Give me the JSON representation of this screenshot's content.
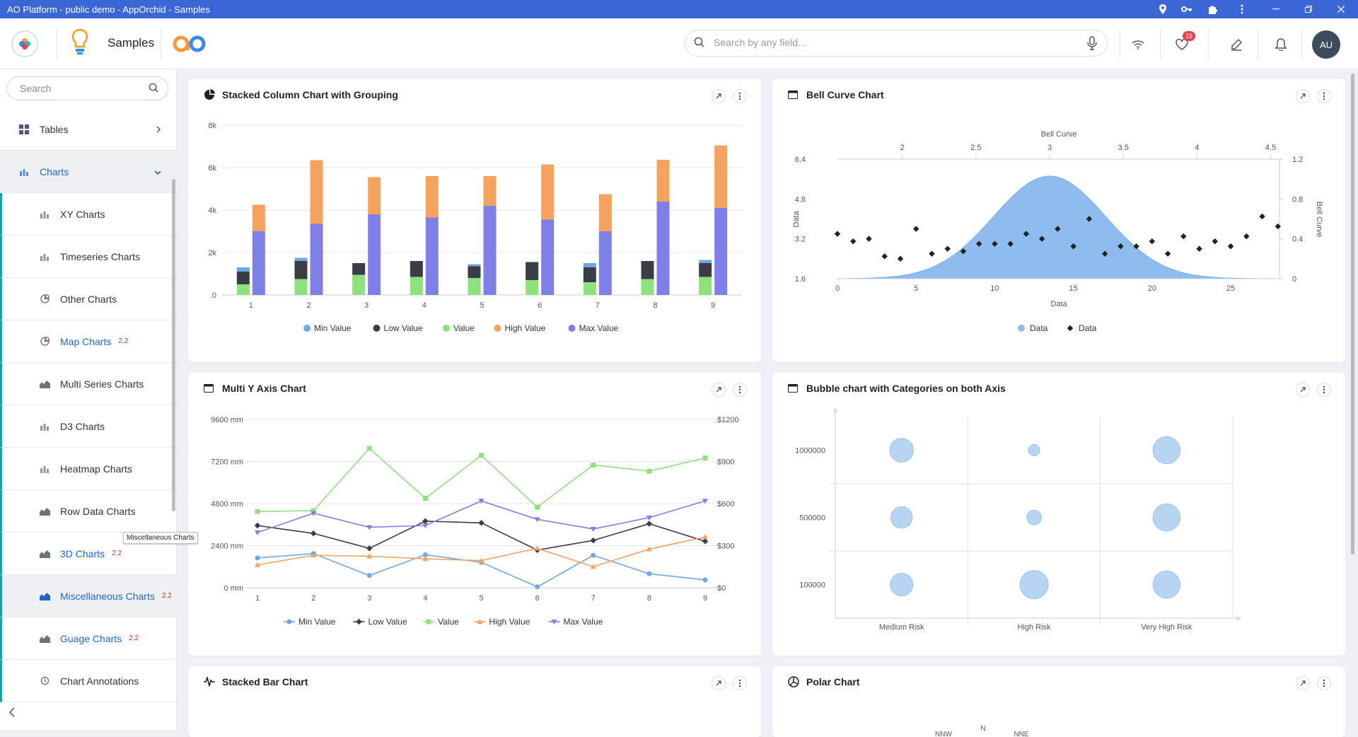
{
  "window": {
    "title": "AO Platform - public demo - AppOrchid - Samples"
  },
  "header": {
    "app_title": "Samples",
    "search_placeholder": "Search by any field...",
    "favorites_count": "15",
    "avatar_initials": "AU"
  },
  "sidebar": {
    "search_placeholder": "Search",
    "items": [
      {
        "label": "Tables",
        "level": "top",
        "icon": "grid-icon"
      },
      {
        "label": "Charts",
        "level": "top",
        "icon": "bar-chart-icon",
        "expanded": true
      },
      {
        "label": "XY Charts",
        "level": "sub",
        "icon": "bar-chart-icon"
      },
      {
        "label": "Timeseries Charts",
        "level": "sub",
        "icon": "bar-chart-icon"
      },
      {
        "label": "Other Charts",
        "level": "sub",
        "icon": "pie-chart-icon"
      },
      {
        "label": "Map Charts",
        "level": "sub",
        "icon": "pie-chart-icon",
        "version": "2.2"
      },
      {
        "label": "Multi Series Charts",
        "level": "sub",
        "icon": "area-chart-icon"
      },
      {
        "label": "D3 Charts",
        "level": "sub",
        "icon": "bar-chart-icon"
      },
      {
        "label": "Heatmap Charts",
        "level": "sub",
        "icon": "bar-chart-icon"
      },
      {
        "label": "Row Data Charts",
        "level": "sub",
        "icon": "area-chart-icon"
      },
      {
        "label": "3D Charts",
        "level": "sub",
        "icon": "area-chart-icon",
        "version": "2.2"
      },
      {
        "label": "Miscellaneous Charts",
        "level": "sub",
        "icon": "area-chart-icon",
        "version": "2.2",
        "active": true
      },
      {
        "label": "Guage Charts",
        "level": "sub",
        "icon": "area-chart-icon",
        "version": "2.2"
      },
      {
        "label": "Chart Annotations",
        "level": "sub",
        "icon": "clock-icon"
      }
    ],
    "tooltip": "Miscellaneous Charts"
  },
  "cards": {
    "stacked_column": {
      "title": "Stacked Column Chart with Grouping"
    },
    "bell_curve": {
      "title": "Bell Curve Chart"
    },
    "multi_y": {
      "title": "Multi Y Axis Chart"
    },
    "bubble": {
      "title": "Bubble chart with Categories on both Axis"
    },
    "stacked_bar": {
      "title": "Stacked Bar Chart"
    },
    "polar": {
      "title": "Polar Chart"
    }
  },
  "colors": {
    "min": "#6fa8e6",
    "low": "#3a3d44",
    "value": "#8ee27d",
    "high": "#f4a25e",
    "max": "#7f7fe8",
    "bell": "#8fbcee",
    "bubble": "#b7d4f2"
  },
  "chart_data": [
    {
      "type": "bar",
      "title": "Stacked Column Chart with Grouping",
      "categories": [
        "1",
        "2",
        "3",
        "4",
        "5",
        "6",
        "7",
        "8",
        "9"
      ],
      "ylim": [
        0,
        8000
      ],
      "yticks": [
        "0",
        "2k",
        "4k",
        "6k",
        "8k"
      ],
      "grouping": "stack1: Min Value, Low Value, Value; stack2: High Value, Max Value",
      "series": [
        {
          "name": "Min Value",
          "values": [
            200,
            150,
            0,
            0,
            100,
            0,
            200,
            0,
            150
          ]
        },
        {
          "name": "Low Value",
          "values": [
            600,
            850,
            550,
            750,
            550,
            850,
            700,
            850,
            650
          ]
        },
        {
          "name": "Value",
          "values": [
            500,
            750,
            950,
            850,
            800,
            700,
            600,
            750,
            850
          ]
        },
        {
          "name": "High Value",
          "values": [
            1250,
            3000,
            1750,
            1950,
            1400,
            2600,
            1750,
            1970,
            2950
          ]
        },
        {
          "name": "Max Value",
          "values": [
            3000,
            3350,
            3800,
            3650,
            4200,
            3550,
            3000,
            4400,
            4100
          ]
        }
      ],
      "legend": "bottom"
    },
    {
      "type": "area",
      "title": "Bell Curve Chart",
      "xlabel": "Data",
      "ylabel": "Data",
      "x2label": "Bell Curve",
      "y2label": "Bell Curve",
      "xticks": [
        "0",
        "5",
        "10",
        "15",
        "20",
        "25"
      ],
      "yticks": [
        "1.6",
        "3.2",
        "4.8",
        "6.4"
      ],
      "x2ticks": [
        "2",
        "2.5",
        "3",
        "3.5",
        "4",
        "4.5"
      ],
      "y2ticks": [
        "0",
        "0.4",
        "0.8",
        "1.2"
      ],
      "bell_range": [
        1.56,
        4.56
      ],
      "bell_peak": 1.03,
      "scatter_y": [
        3.4,
        3.1,
        3.2,
        2.5,
        2.4,
        3.6,
        2.6,
        2.8,
        2.7,
        3.0,
        3.0,
        3.0,
        3.4,
        3.2,
        3.6,
        2.9,
        4.0,
        2.6,
        2.9,
        2.9,
        3.1,
        2.6,
        3.3,
        2.8,
        3.1,
        2.9,
        3.3,
        4.1,
        3.7
      ],
      "series": [
        {
          "name": "Data"
        },
        {
          "name": "Data"
        }
      ],
      "legend": "bottom"
    },
    {
      "type": "line",
      "title": "Multi Y Axis Chart",
      "categories": [
        "1",
        "2",
        "3",
        "4",
        "5",
        "6",
        "7",
        "8",
        "9"
      ],
      "yticks_left": [
        "0 mm",
        "2400 mm",
        "4800 mm",
        "7200 mm",
        "9600 mm"
      ],
      "yticks_right": [
        "$0",
        "$300",
        "$600",
        "$900",
        "$1200"
      ],
      "ylim": [
        0,
        9600
      ],
      "series": [
        {
          "name": "Min Value",
          "values": [
            1700,
            1950,
            700,
            1880,
            1450,
            50,
            1850,
            800,
            450
          ]
        },
        {
          "name": "Low Value",
          "values": [
            3550,
            3100,
            2250,
            3800,
            3700,
            2150,
            2700,
            3650,
            2650
          ]
        },
        {
          "name": "Value",
          "values": [
            4350,
            4400,
            7950,
            5100,
            7550,
            4600,
            7000,
            6650,
            7400
          ]
        },
        {
          "name": "High Value",
          "values": [
            1300,
            1850,
            1800,
            1650,
            1550,
            2250,
            1200,
            2200,
            2900
          ]
        },
        {
          "name": "Max Value",
          "values": [
            3150,
            4250,
            3450,
            3550,
            4950,
            3900,
            3350,
            4000,
            4950
          ]
        }
      ],
      "legend": "bottom"
    },
    {
      "type": "scatter",
      "title": "Bubble chart with Categories on both Axis",
      "categories_x": [
        "Medium Risk",
        "High Risk",
        "Very High Risk"
      ],
      "categories_y": [
        "100000",
        "500000",
        "1000000"
      ],
      "points": [
        {
          "x": "Medium Risk",
          "y": "1000000",
          "size": 0.8
        },
        {
          "x": "High Risk",
          "y": "1000000",
          "size": 0.25
        },
        {
          "x": "Very High Risk",
          "y": "1000000",
          "size": 0.95
        },
        {
          "x": "Medium Risk",
          "y": "500000",
          "size": 0.7
        },
        {
          "x": "High Risk",
          "y": "500000",
          "size": 0.4
        },
        {
          "x": "Very High Risk",
          "y": "500000",
          "size": 0.95
        },
        {
          "x": "Medium Risk",
          "y": "100000",
          "size": 0.75
        },
        {
          "x": "High Risk",
          "y": "100000",
          "size": 1.0
        },
        {
          "x": "Very High Risk",
          "y": "100000",
          "size": 0.95
        }
      ]
    },
    {
      "type": "bar",
      "title": "Stacked Bar Chart",
      "series": []
    },
    {
      "type": "scatter",
      "title": "Polar Chart",
      "direction_labels": [
        "NNW",
        "N",
        "NNE"
      ]
    }
  ]
}
